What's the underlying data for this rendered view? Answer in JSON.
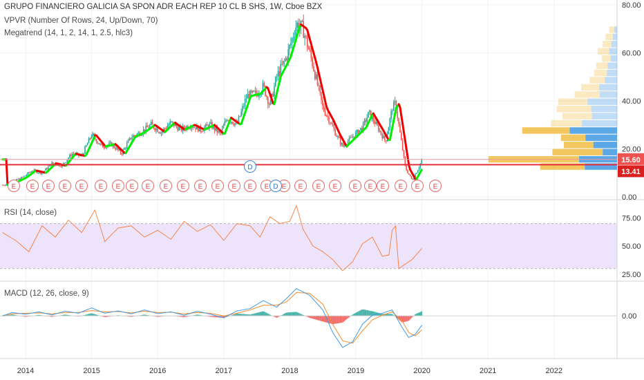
{
  "header": {
    "title": "GRUPO FINANCIERO GALICIA SA SPON ADR EACH REP 10 CL B SHS, 1W, Cboe BZX",
    "vpvr_label": "VPVR (Number Of Rows, 24, Up/Down, 70)",
    "megatrend_label": "Megatrend (14, 1, 2, 14, 1, 2.5, hlc3)"
  },
  "rsi_panel": {
    "label": "RSI (14, close)"
  },
  "macd_panel": {
    "label": "MACD (12, 26, close, 9)"
  },
  "colors": {
    "up": "#26a69a",
    "down": "#ef5350",
    "trend_up": "#00ee00",
    "trend_down": "#ee0000",
    "vp_up": "#4a9de2",
    "vp_down": "#f2c14e",
    "rsi": "#f5864a",
    "rsi_band": "#ede3fb",
    "macd": "#3e9ae5",
    "signal": "#f58b2a",
    "hline": "#e5303a"
  },
  "price_badges": {
    "last": "15.60",
    "level": "13.41"
  },
  "event_markers": {
    "earnings_letter": "E",
    "dividend_letter": "D"
  },
  "chart_data": [
    {
      "type": "line",
      "title": "GRUPO FINANCIERO GALICIA SA SPON ADR EACH REP 10 CL B SHS, 1W, Cboe BZX",
      "x_axis_ticks": [
        "2014",
        "2015",
        "2016",
        "2017",
        "2018",
        "2019",
        "2020",
        "2021",
        "2022"
      ],
      "y_axis_ticks": [
        "0.00",
        "20.00",
        "40.00",
        "60.00",
        "80.00"
      ],
      "ylim": [
        0,
        80
      ],
      "x": [
        2013.65,
        2013.8,
        2013.95,
        2014.1,
        2014.25,
        2014.4,
        2014.55,
        2014.7,
        2014.85,
        2015.0,
        2015.15,
        2015.3,
        2015.45,
        2015.6,
        2015.75,
        2015.9,
        2016.05,
        2016.2,
        2016.35,
        2016.5,
        2016.65,
        2016.8,
        2016.95,
        2017.05,
        2017.2,
        2017.35,
        2017.5,
        2017.6,
        2017.7,
        2017.8,
        2017.95,
        2018.05,
        2018.1,
        2018.2,
        2018.35,
        2018.5,
        2018.6,
        2018.7,
        2018.8,
        2018.95,
        2019.1,
        2019.2,
        2019.35,
        2019.45,
        2019.55,
        2019.6,
        2019.65,
        2019.75,
        2019.85,
        2019.95,
        2020.0
      ],
      "values": [
        5,
        6,
        8,
        11,
        10,
        14,
        13,
        18,
        17,
        26,
        21,
        22,
        18,
        25,
        27,
        30,
        27,
        31,
        28,
        30,
        28,
        30,
        26,
        33,
        30,
        42,
        43,
        46,
        38,
        50,
        58,
        67,
        72,
        70,
        55,
        37,
        32,
        26,
        21,
        25,
        29,
        35,
        28,
        23,
        37,
        39,
        30,
        12,
        7,
        12,
        15.6
      ],
      "series_names": [
        "Megatrend"
      ],
      "horizontal_level": 13.41,
      "last_price": 15.6,
      "volume_profile": {
        "price_levels": [
          12.5,
          15.5,
          18.5,
          21.5,
          24.5,
          27.5,
          30.5,
          33.5,
          36.5,
          39.5,
          42.5,
          45.5,
          48.5,
          51.5,
          54.5,
          57.5,
          60.5,
          63.5,
          66.5,
          69.5
        ],
        "up": [
          4.5,
          5.3,
          2,
          3.3,
          4.4,
          6.6,
          4.9,
          3.5,
          3.6,
          4.1,
          2.4,
          2.5,
          1.7,
          1.4,
          1.3,
          0.9,
          1.1,
          0.8,
          0.6,
          0.4
        ],
        "down": [
          6.2,
          12.6,
          7,
          4.1,
          3.4,
          6.6,
          4.3,
          4.1,
          4.8,
          4.1,
          3.5,
          2.5,
          2.1,
          1.8,
          1.6,
          1.2,
          1.6,
          1.2,
          1.0,
          0.7
        ]
      }
    },
    {
      "type": "line",
      "title": "RSI (14, close)",
      "y_axis_ticks": [
        "25.00",
        "50.00",
        "75.00"
      ],
      "ylim": [
        20,
        90
      ],
      "band": [
        30,
        70
      ],
      "x": [
        2013.65,
        2013.85,
        2014.05,
        2014.25,
        2014.45,
        2014.65,
        2014.85,
        2015.05,
        2015.2,
        2015.4,
        2015.6,
        2015.8,
        2016.0,
        2016.2,
        2016.4,
        2016.6,
        2016.8,
        2017.0,
        2017.2,
        2017.4,
        2017.55,
        2017.7,
        2017.85,
        2018.0,
        2018.1,
        2018.2,
        2018.35,
        2018.5,
        2018.65,
        2018.8,
        2018.95,
        2019.1,
        2019.25,
        2019.4,
        2019.5,
        2019.55,
        2019.6,
        2019.65,
        2019.75,
        2019.85,
        2020.0
      ],
      "values": [
        62,
        55,
        45,
        68,
        58,
        73,
        62,
        82,
        54,
        66,
        68,
        58,
        64,
        56,
        72,
        63,
        69,
        55,
        70,
        68,
        58,
        76,
        70,
        72,
        86,
        65,
        50,
        45,
        38,
        28,
        36,
        52,
        58,
        41,
        42,
        64,
        68,
        30,
        34,
        38,
        48
      ]
    },
    {
      "type": "line",
      "title": "MACD (12, 26, close, 9)",
      "y_axis_ticks": [
        "0.00"
      ],
      "ylim": [
        -12,
        10
      ],
      "x": [
        2013.65,
        2013.8,
        2014.0,
        2014.2,
        2014.4,
        2014.6,
        2014.8,
        2015.0,
        2015.2,
        2015.4,
        2015.6,
        2015.8,
        2016.0,
        2016.2,
        2016.4,
        2016.6,
        2016.8,
        2017.0,
        2017.2,
        2017.4,
        2017.6,
        2017.8,
        2017.95,
        2018.1,
        2018.3,
        2018.5,
        2018.65,
        2018.8,
        2018.95,
        2019.1,
        2019.25,
        2019.4,
        2019.55,
        2019.7,
        2019.8,
        2019.9,
        2020.0
      ],
      "series": [
        {
          "name": "MACD",
          "values": [
            0,
            1,
            0.5,
            1.2,
            0.3,
            1.4,
            0.8,
            2.4,
            0.8,
            1.5,
            0.6,
            1.8,
            0.7,
            1.2,
            0.2,
            1.4,
            0.5,
            -0.6,
            1.5,
            2.2,
            4.6,
            2.6,
            5.2,
            8.2,
            6.2,
            1.8,
            -5,
            -9.5,
            -7.8,
            -2.5,
            0.2,
            0.8,
            1.8,
            -3.5,
            -6.5,
            -5.5,
            -2.8
          ]
        },
        {
          "name": "Signal",
          "values": [
            0,
            0.6,
            0.8,
            0.9,
            0.6,
            1.0,
            1.0,
            1.6,
            1.2,
            1.3,
            0.9,
            1.4,
            1.0,
            1.1,
            0.6,
            1.0,
            0.8,
            0.0,
            0.8,
            1.8,
            3.2,
            3.2,
            4.2,
            7.0,
            6.8,
            3.5,
            -2.5,
            -7.5,
            -8.2,
            -4.5,
            -1.2,
            0.2,
            1.2,
            -1.5,
            -5,
            -6,
            -4.2
          ]
        }
      ]
    }
  ]
}
